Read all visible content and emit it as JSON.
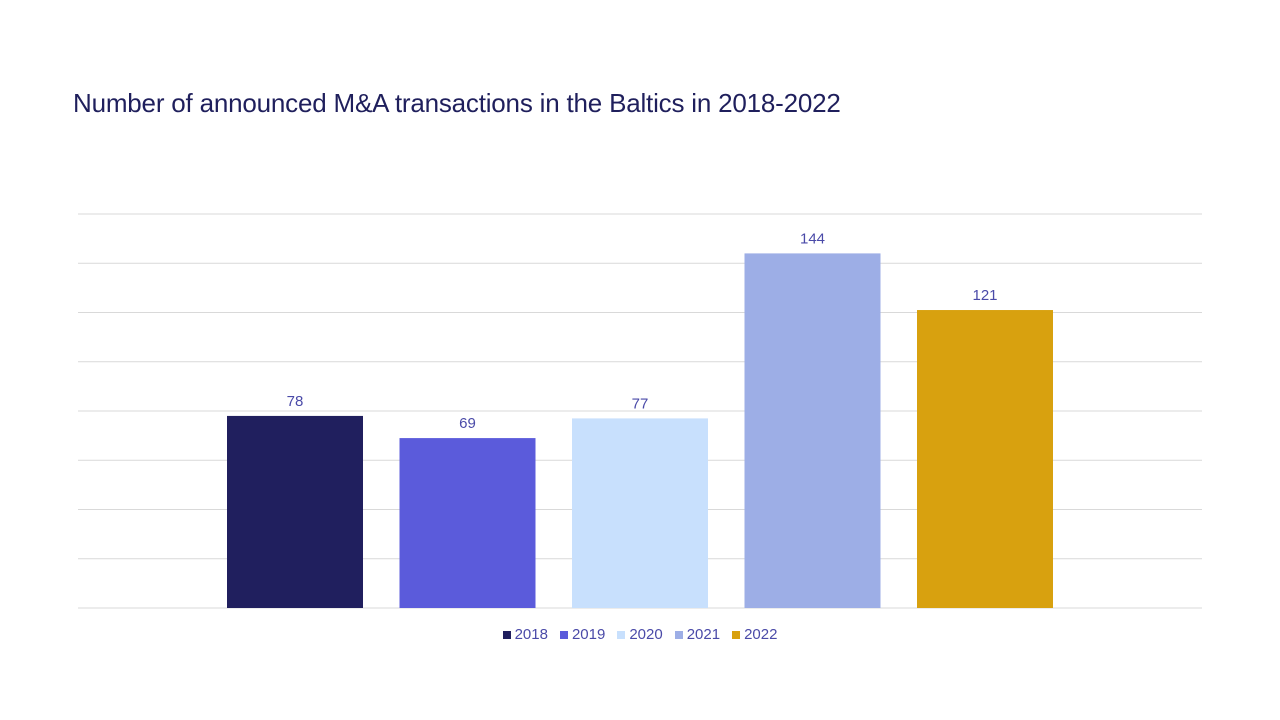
{
  "chart_data": {
    "type": "bar",
    "title": "Number of announced M&A transactions in the Baltics in 2018-2022",
    "categories": [
      "2018",
      "2019",
      "2020",
      "2021",
      "2022"
    ],
    "values": [
      78,
      69,
      77,
      144,
      121
    ],
    "colors": [
      "#201f5e",
      "#5b5bdb",
      "#c8e0fd",
      "#9daee6",
      "#d8a10f"
    ],
    "ylim": [
      0,
      160
    ],
    "grid": true,
    "legend_position": "bottom",
    "data_labels": true,
    "label_color": "#4a4aa8",
    "grid_color": "#d9d9d9"
  }
}
